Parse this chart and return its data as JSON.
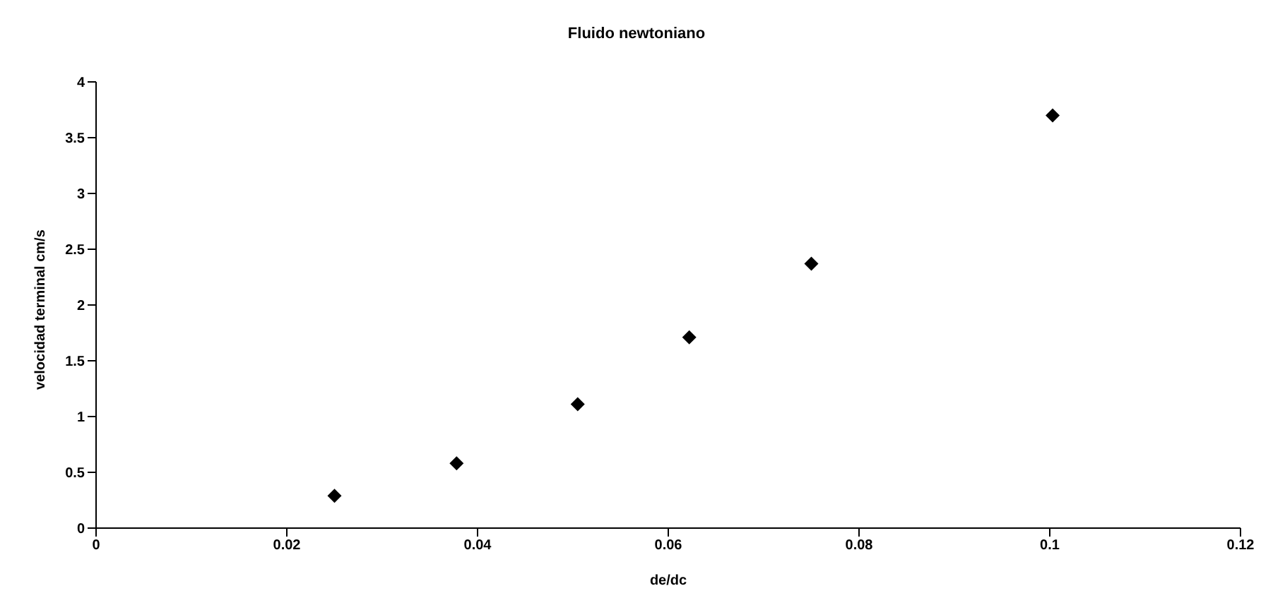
{
  "chart_data": {
    "type": "scatter",
    "title": "Fluido newtoniano",
    "xlabel": "de/dc",
    "ylabel": "velocidad terminal cm/s",
    "x": [
      0.025,
      0.0378,
      0.0505,
      0.0622,
      0.075,
      0.1003
    ],
    "series": [
      {
        "color": "#000000",
        "values": [
          0.29,
          0.58,
          1.11,
          1.71,
          2.37,
          3.7
        ]
      }
    ],
    "xlim": [
      0,
      0.12
    ],
    "xticks": [
      0,
      0.02,
      0.04,
      0.06,
      0.08,
      0.1,
      0.12
    ],
    "ylim": [
      0,
      4
    ],
    "yticks": [
      0,
      0.5,
      1,
      1.5,
      2,
      2.5,
      3,
      3.5,
      4
    ],
    "grid": false,
    "legend": false,
    "marker": "diamond"
  }
}
